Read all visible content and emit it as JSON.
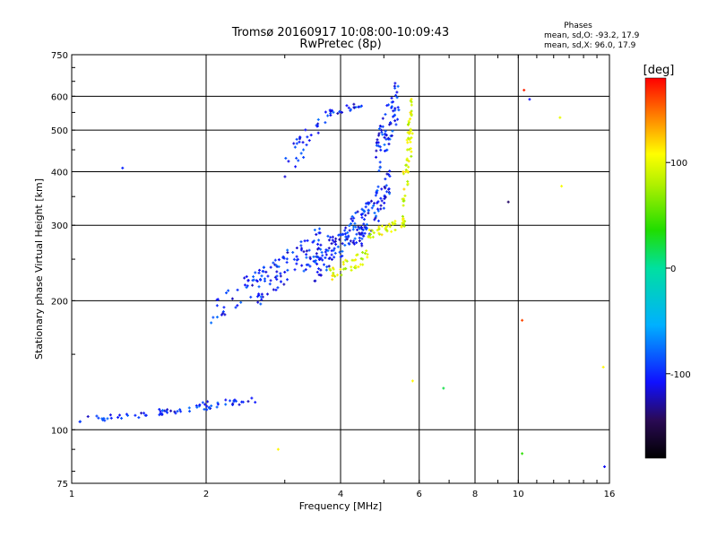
{
  "chart_data": {
    "type": "scatter",
    "title": "Tromsø 20160917 10:08:00-10:09:43",
    "subtitle": "RwPretec (8p)",
    "xlabel": "Frequency [MHz]",
    "ylabel": "Stationary phase Virtual Height [km]",
    "x_scale": "log",
    "y_scale": "log",
    "xlim": [
      1,
      16
    ],
    "ylim": [
      75,
      750
    ],
    "x_ticks": [
      1,
      2,
      4,
      6,
      8,
      10,
      16
    ],
    "x_tick_labels": [
      "1",
      "2",
      "4",
      "6",
      "8",
      "10",
      "16"
    ],
    "y_ticks": [
      75,
      100,
      200,
      300,
      400,
      500,
      600,
      750
    ],
    "y_tick_labels": [
      "75",
      "100",
      "200",
      "300",
      "400",
      "500",
      "600",
      "750"
    ],
    "grid": true,
    "stats": {
      "title": "Phases",
      "line_o": "mean, sd,O: -93.2, 17.9",
      "line_x": "mean, sd,X:  96.0, 17.9"
    },
    "colorbar": {
      "label": "[deg]",
      "min": -180,
      "max": 180,
      "ticks": [
        100,
        0,
        -100
      ],
      "tick_labels": [
        "100",
        "0",
        "-100"
      ]
    },
    "series": [
      {
        "mode": "O",
        "color_value": -100,
        "color": "#1a3cff",
        "segments": [
          {
            "x_range": [
              1.04,
              1.75
            ],
            "y_range": [
              104,
              112
            ],
            "count": 40
          },
          {
            "x_range": [
              1.75,
              2.6
            ],
            "y_range": [
              110,
              120
            ],
            "count": 35
          },
          {
            "x_range": [
              2.05,
              2.7
            ],
            "y_range": [
              180,
              240
            ],
            "count": 40
          },
          {
            "x_range": [
              2.6,
              3.6
            ],
            "y_range": [
              200,
              290
            ],
            "count": 90
          },
          {
            "x_range": [
              3.5,
              4.6
            ],
            "y_range": [
              230,
              330
            ],
            "count": 120
          },
          {
            "x_range": [
              4.4,
              5.2
            ],
            "y_range": [
              270,
              400
            ],
            "count": 70
          },
          {
            "x_range": [
              4.8,
              5.4
            ],
            "y_range": [
              400,
              650
            ],
            "count": 70
          },
          {
            "x_range": [
              3.0,
              3.7
            ],
            "y_range": [
              400,
              540
            ],
            "count": 30
          },
          {
            "x_range": [
              3.7,
              4.5
            ],
            "y_range": [
              540,
              580
            ],
            "count": 25
          }
        ]
      },
      {
        "mode": "X",
        "color_value": 96,
        "color": "#f4e800",
        "segments": [
          {
            "x_range": [
              3.75,
              4.6
            ],
            "y_range": [
              225,
              260
            ],
            "count": 40
          },
          {
            "x_range": [
              4.6,
              5.6
            ],
            "y_range": [
              280,
              310
            ],
            "count": 40
          },
          {
            "x_range": [
              5.5,
              5.8
            ],
            "y_range": [
              310,
              600
            ],
            "count": 60
          }
        ]
      }
    ],
    "isolated_points": [
      {
        "x": 1.3,
        "y": 408,
        "color_value": -100
      },
      {
        "x": 10.3,
        "y": 620,
        "color_value": 170
      },
      {
        "x": 10.6,
        "y": 590,
        "color_value": -110
      },
      {
        "x": 12.4,
        "y": 535,
        "color_value": 100
      },
      {
        "x": 12.5,
        "y": 370,
        "color_value": 105
      },
      {
        "x": 9.5,
        "y": 340,
        "color_value": -140
      },
      {
        "x": 10.2,
        "y": 180,
        "color_value": 160
      },
      {
        "x": 15.5,
        "y": 140,
        "color_value": 110
      },
      {
        "x": 15.6,
        "y": 82,
        "color_value": -110
      },
      {
        "x": 6.8,
        "y": 125,
        "color_value": 20
      },
      {
        "x": 5.8,
        "y": 130,
        "color_value": 110
      },
      {
        "x": 10.2,
        "y": 88,
        "color_value": 40
      },
      {
        "x": 2.9,
        "y": 90,
        "color_value": 110
      }
    ]
  }
}
